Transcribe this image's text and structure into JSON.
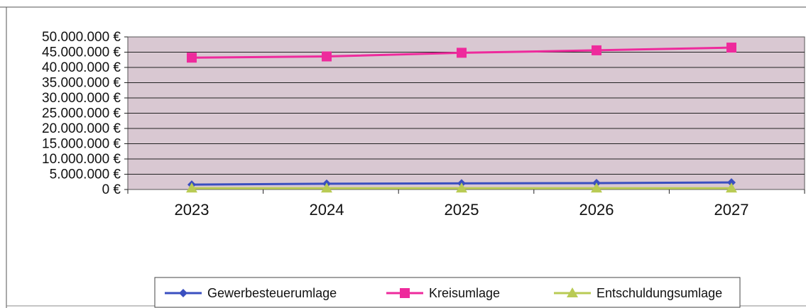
{
  "chart_data": {
    "type": "line",
    "categories": [
      "2023",
      "2024",
      "2025",
      "2026",
      "2027"
    ],
    "ylim": [
      0,
      50000000
    ],
    "y_ticks": [
      "0 €",
      "5.000.000 €",
      "10.000.000 €",
      "15.000.000 €",
      "20.000.000 €",
      "25.000.000 €",
      "30.000.000 €",
      "35.000.000 €",
      "40.000.000 €",
      "45.000.000 €",
      "50.000.000 €"
    ],
    "grid": true,
    "legend_position": "bottom",
    "series": [
      {
        "name": "Gewerbesteuerumlage",
        "color": "#3a4fc0",
        "marker": "diamond",
        "values": [
          1600000,
          1900000,
          2000000,
          2100000,
          2300000
        ]
      },
      {
        "name": "Kreisumlage",
        "color": "#ee2a9c",
        "marker": "square",
        "values": [
          43200000,
          43600000,
          44800000,
          45600000,
          46500000
        ]
      },
      {
        "name": "Entschuldungsumlage",
        "color": "#b9cb54",
        "marker": "triangle",
        "values": [
          400000,
          400000,
          400000,
          400000,
          400000
        ]
      }
    ]
  }
}
